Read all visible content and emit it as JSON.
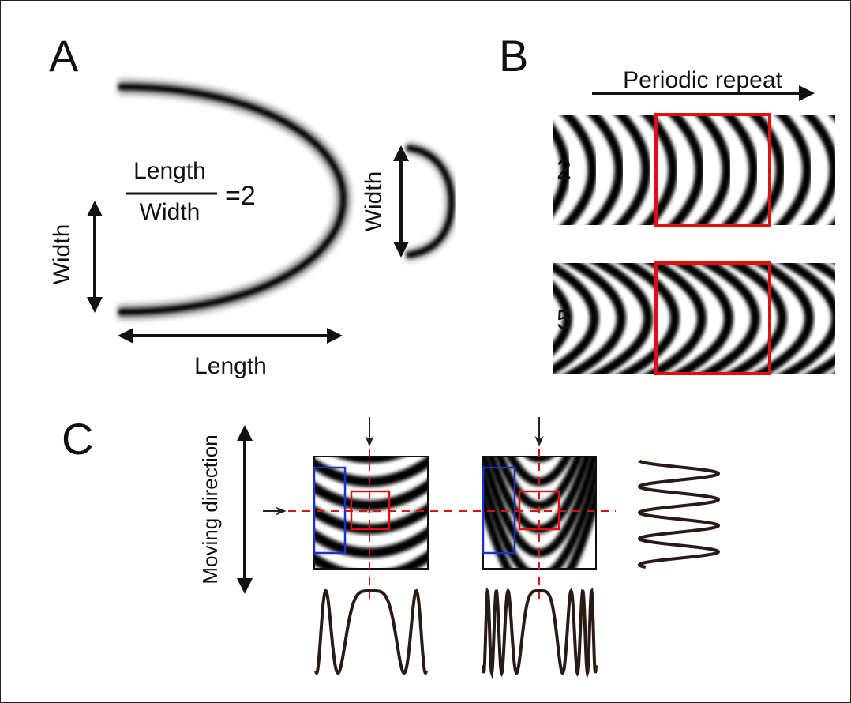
{
  "panels": {
    "a": {
      "label": "A",
      "numerator": "Length",
      "denominator": "Width",
      "ratio": "=2",
      "width_label": "Width",
      "length_label": "Length",
      "arc_width_label": "Width"
    },
    "b": {
      "label": "B",
      "title": "Periodic repeat",
      "rows": [
        "2",
        "5"
      ]
    },
    "c": {
      "label": "C",
      "axis_label": "Moving direction"
    }
  }
}
